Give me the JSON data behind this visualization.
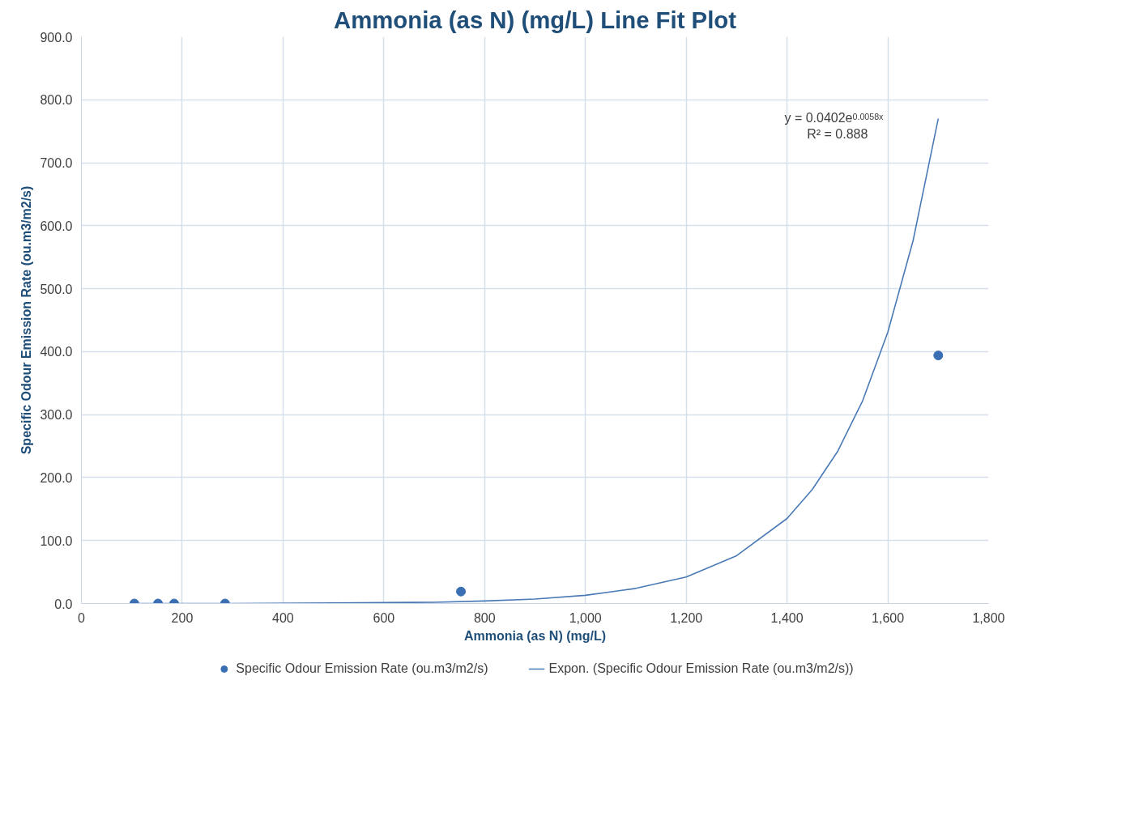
{
  "chart_data": {
    "type": "scatter",
    "title": "Ammonia (as N) (mg/L) Line Fit Plot",
    "xlabel": "Ammonia (as N) (mg/L)",
    "ylabel": "Specific Odour Emission Rate (ou.m3/m2/s)",
    "xlim": [
      0,
      1800
    ],
    "ylim": [
      0,
      900
    ],
    "xticks": [
      0,
      200,
      400,
      600,
      800,
      {
        "value": 1000,
        "label": "1,000"
      },
      {
        "value": 1200,
        "label": "1,200"
      },
      {
        "value": 1400,
        "label": "1,400"
      },
      {
        "value": 1600,
        "label": "1,600"
      },
      {
        "value": 1800,
        "label": "1,800"
      }
    ],
    "yticks": [
      {
        "value": 0,
        "label": "0.0"
      },
      {
        "value": 100,
        "label": "100.0"
      },
      {
        "value": 200,
        "label": "200.0"
      },
      {
        "value": 300,
        "label": "300.0"
      },
      {
        "value": 400,
        "label": "400.0"
      },
      {
        "value": 500,
        "label": "500.0"
      },
      {
        "value": 600,
        "label": "600.0"
      },
      {
        "value": 700,
        "label": "700.0"
      },
      {
        "value": 800,
        "label": "800.0"
      },
      {
        "value": 900,
        "label": "900.0"
      }
    ],
    "grid": true,
    "legend": "bottom",
    "series": [
      {
        "name": "Specific Odour Emission Rate (ou.m3/m2/s)",
        "marker": "circle",
        "color": "#3a70b3",
        "x": [
          105,
          152,
          184,
          285,
          753,
          1700
        ],
        "values": [
          0,
          0,
          0,
          0,
          19,
          394
        ]
      },
      {
        "name": "Expon. (Specific Odour Emission Rate (ou.m3/m2/s))",
        "type": "line",
        "line_style": "solid",
        "color": "#4a7ab5",
        "x": [
          104,
          300,
          500,
          700,
          800,
          900,
          1000,
          1100,
          1200,
          1300,
          1400,
          1450,
          1500,
          1550,
          1600,
          1650,
          1700
        ],
        "values": [
          0,
          0,
          1,
          2,
          4,
          7,
          13,
          24,
          42,
          76,
          135,
          181,
          241,
          322,
          431,
          576,
          770
        ]
      }
    ],
    "annotations": [
      "y = 0.0402e$^{0.0058x}$",
      "R² = 0.888"
    ]
  }
}
